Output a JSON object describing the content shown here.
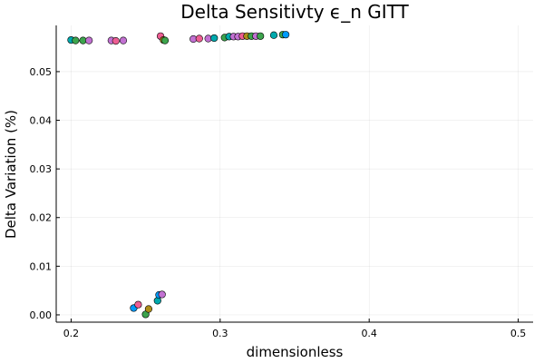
{
  "chart_data": {
    "type": "scatter",
    "title": "Delta Sensitivty ϵ_n GITT",
    "xlabel": "dimensionless",
    "ylabel": "Delta Variation (%)",
    "xlim": [
      0.19,
      0.51
    ],
    "ylim": [
      -0.0015,
      0.0595
    ],
    "xticks": [
      0.2,
      0.3,
      0.4,
      0.5
    ],
    "xtick_labels": [
      "0.2",
      "0.3",
      "0.4",
      "0.5"
    ],
    "yticks": [
      0.0,
      0.01,
      0.02,
      0.03,
      0.04,
      0.05
    ],
    "ytick_labels": [
      "0.00",
      "0.01",
      "0.02",
      "0.03",
      "0.04",
      "0.05"
    ],
    "grid": true,
    "legend": "none",
    "palette": [
      "#009af9",
      "#e26f46",
      "#3da44d",
      "#c271d2",
      "#ac8d18",
      "#00a9ad",
      "#ed5e93"
    ],
    "points": [
      {
        "x": 0.2,
        "y": 0.0565,
        "color": "#00a9ad"
      },
      {
        "x": 0.203,
        "y": 0.0564,
        "color": "#3da44d"
      },
      {
        "x": 0.208,
        "y": 0.0564,
        "color": "#3da44d"
      },
      {
        "x": 0.212,
        "y": 0.0564,
        "color": "#c271d2"
      },
      {
        "x": 0.227,
        "y": 0.0564,
        "color": "#c271d2"
      },
      {
        "x": 0.23,
        "y": 0.0563,
        "color": "#ed5e93"
      },
      {
        "x": 0.235,
        "y": 0.0564,
        "color": "#c271d2"
      },
      {
        "x": 0.26,
        "y": 0.0573,
        "color": "#ed5e93"
      },
      {
        "x": 0.262,
        "y": 0.0565,
        "color": "#ac8d18"
      },
      {
        "x": 0.263,
        "y": 0.0564,
        "color": "#3da44d"
      },
      {
        "x": 0.282,
        "y": 0.0567,
        "color": "#c271d2"
      },
      {
        "x": 0.286,
        "y": 0.0568,
        "color": "#ed5e93"
      },
      {
        "x": 0.292,
        "y": 0.0568,
        "color": "#c271d2"
      },
      {
        "x": 0.296,
        "y": 0.0569,
        "color": "#00a9ad"
      },
      {
        "x": 0.303,
        "y": 0.057,
        "color": "#3da44d"
      },
      {
        "x": 0.306,
        "y": 0.0572,
        "color": "#00a9ad"
      },
      {
        "x": 0.309,
        "y": 0.0572,
        "color": "#c271d2"
      },
      {
        "x": 0.312,
        "y": 0.0572,
        "color": "#c271d2"
      },
      {
        "x": 0.315,
        "y": 0.0573,
        "color": "#ed5e93"
      },
      {
        "x": 0.318,
        "y": 0.0573,
        "color": "#ac8d18"
      },
      {
        "x": 0.321,
        "y": 0.0573,
        "color": "#3da44d"
      },
      {
        "x": 0.324,
        "y": 0.0573,
        "color": "#c271d2"
      },
      {
        "x": 0.327,
        "y": 0.0573,
        "color": "#3da44d"
      },
      {
        "x": 0.336,
        "y": 0.0575,
        "color": "#00a9ad"
      },
      {
        "x": 0.342,
        "y": 0.0576,
        "color": "#3da44d"
      },
      {
        "x": 0.344,
        "y": 0.0576,
        "color": "#009af9"
      },
      {
        "x": 0.242,
        "y": 0.0014,
        "color": "#009af9"
      },
      {
        "x": 0.245,
        "y": 0.0021,
        "color": "#ed5e93"
      },
      {
        "x": 0.25,
        "y": 0.0001,
        "color": "#3da44d"
      },
      {
        "x": 0.252,
        "y": 0.0012,
        "color": "#ac8d18"
      },
      {
        "x": 0.258,
        "y": 0.0029,
        "color": "#00a9ad"
      },
      {
        "x": 0.259,
        "y": 0.0041,
        "color": "#009af9"
      },
      {
        "x": 0.261,
        "y": 0.0042,
        "color": "#c271d2"
      }
    ]
  }
}
